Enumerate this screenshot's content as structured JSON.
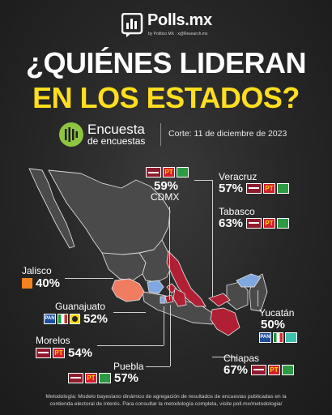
{
  "brand": {
    "name": "Polls.mx",
    "subtitle": "by Político MX · x@Research.mx"
  },
  "headline": {
    "line1": "¿QUIÉNES LIDERAN",
    "line2": "EN LOS ESTADOS?"
  },
  "survey": {
    "title": "Encuesta",
    "subtitle": "de encuestas",
    "cutoff": "Corte: 11 de diciembre de 2023"
  },
  "colors": {
    "morena": "#8f1c2e",
    "mc": "#f3831f",
    "pan": "#1f4f9f",
    "headline_accent": "#ffde1f"
  },
  "states": [
    {
      "key": "cdmx",
      "name": "CDMX",
      "pct": "59%",
      "leader": "morena-pt-pvem"
    },
    {
      "key": "veracruz",
      "name": "Veracruz",
      "pct": "57%",
      "leader": "morena-pt-pvem"
    },
    {
      "key": "tabasco",
      "name": "Tabasco",
      "pct": "63%",
      "leader": "morena-pt-pvem"
    },
    {
      "key": "jalisco",
      "name": "Jalisco",
      "pct": "40%",
      "leader": "mc"
    },
    {
      "key": "guanajuato",
      "name": "Guanajuato",
      "pct": "52%",
      "leader": "pan-pri-prd"
    },
    {
      "key": "yucatan",
      "name": "Yucatán",
      "pct": "50%",
      "leader": "pan-pri"
    },
    {
      "key": "morelos",
      "name": "Morelos",
      "pct": "54%",
      "leader": "morena-pt"
    },
    {
      "key": "chiapas",
      "name": "Chiapas",
      "pct": "67%",
      "leader": "morena-pt-pvem"
    },
    {
      "key": "puebla",
      "name": "Puebla",
      "pct": "57%",
      "leader": "morena-pt-pvem"
    }
  ],
  "party_badges": {
    "pt": "PT",
    "pan": "PAN"
  },
  "footer": {
    "line1": "Metodología: Modelo bayesiano dinámico de agregación de resultados de encuestas publicadas en la",
    "line2": "contienda electoral de interés. Para consultar la metodología completa, visite poll.mx/metodologia/"
  }
}
